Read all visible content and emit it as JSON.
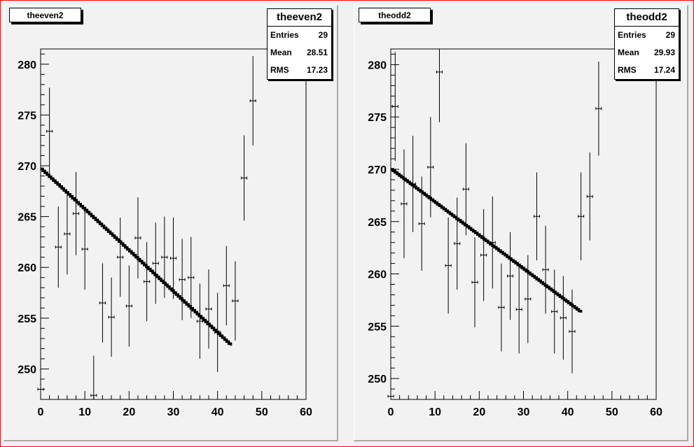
{
  "colors": {
    "frame_border": "#ff0000",
    "pad_background": "#f2f2f2",
    "marker": "#000000",
    "fit_line": "#000000"
  },
  "chart_data": [
    {
      "type": "scatter",
      "title": "theeven2",
      "stats": {
        "name": "theeven2",
        "rows": [
          {
            "label": "Entries",
            "value": "29"
          },
          {
            "label": "Mean",
            "value": "28.51"
          },
          {
            "label": "RMS",
            "value": "17.23"
          }
        ]
      },
      "xlim": [
        0,
        60
      ],
      "ylim": [
        247,
        281.5
      ],
      "xticks": [
        0,
        10,
        20,
        30,
        40,
        50,
        60
      ],
      "yticks": [
        250,
        255,
        260,
        265,
        270,
        275,
        280
      ],
      "points": [
        {
          "x": 0,
          "y": 248,
          "err": 1.2
        },
        {
          "x": 2,
          "y": 273.4,
          "err": 4.3
        },
        {
          "x": 4,
          "y": 262,
          "err": 4
        },
        {
          "x": 6,
          "y": 263.3,
          "err": 4
        },
        {
          "x": 8,
          "y": 265.3,
          "err": 4.1
        },
        {
          "x": 10,
          "y": 261.8,
          "err": 4
        },
        {
          "x": 12,
          "y": 247.4,
          "err": 3.9
        },
        {
          "x": 14,
          "y": 256.5,
          "err": 3.9
        },
        {
          "x": 16,
          "y": 255.1,
          "err": 3.9
        },
        {
          "x": 18,
          "y": 261,
          "err": 3.9
        },
        {
          "x": 20,
          "y": 256.2,
          "err": 4
        },
        {
          "x": 22,
          "y": 262.9,
          "err": 4
        },
        {
          "x": 24,
          "y": 258.6,
          "err": 3.9
        },
        {
          "x": 26,
          "y": 260.4,
          "err": 4
        },
        {
          "x": 28,
          "y": 261,
          "err": 4
        },
        {
          "x": 30,
          "y": 260.9,
          "err": 4
        },
        {
          "x": 32,
          "y": 258.8,
          "err": 4
        },
        {
          "x": 34,
          "y": 259,
          "err": 4
        },
        {
          "x": 36,
          "y": 254.7,
          "err": 3.7
        },
        {
          "x": 38,
          "y": 255.9,
          "err": 3.9
        },
        {
          "x": 40,
          "y": 253.6,
          "err": 3.9
        },
        {
          "x": 42,
          "y": 258.2,
          "err": 3.9
        },
        {
          "x": 44,
          "y": 256.7,
          "err": 3.9
        },
        {
          "x": 46,
          "y": 268.8,
          "err": 4.2
        },
        {
          "x": 48,
          "y": 276.4,
          "err": 4.4
        }
      ],
      "fit": {
        "x": [
          0,
          43
        ],
        "y": [
          269.7,
          252.3
        ]
      }
    },
    {
      "type": "scatter",
      "title": "theodd2",
      "stats": {
        "name": "theodd2",
        "rows": [
          {
            "label": "Entries",
            "value": "29"
          },
          {
            "label": "Mean",
            "value": "29.93"
          },
          {
            "label": "RMS",
            "value": "17.24"
          }
        ]
      },
      "xlim": [
        0,
        60
      ],
      "ylim": [
        248,
        281.5
      ],
      "xticks": [
        0,
        10,
        20,
        30,
        40,
        50,
        60
      ],
      "yticks": [
        250,
        255,
        260,
        265,
        270,
        275,
        280
      ],
      "points": [
        {
          "x": 0,
          "y": 248.3,
          "err": 0.8
        },
        {
          "x": 1,
          "y": 276,
          "err": 5.2
        },
        {
          "x": 3,
          "y": 266.7,
          "err": 5.2
        },
        {
          "x": 5,
          "y": 268.6,
          "err": 4.6
        },
        {
          "x": 7,
          "y": 264.8,
          "err": 4.5
        },
        {
          "x": 9,
          "y": 270.2,
          "err": 4.8
        },
        {
          "x": 11,
          "y": 279.3,
          "err": 4.8
        },
        {
          "x": 13,
          "y": 260.8,
          "err": 4.6
        },
        {
          "x": 15,
          "y": 262.9,
          "err": 4.4
        },
        {
          "x": 17,
          "y": 268.1,
          "err": 4.4
        },
        {
          "x": 19,
          "y": 259.2,
          "err": 4.3
        },
        {
          "x": 21,
          "y": 261.8,
          "err": 4.4
        },
        {
          "x": 23,
          "y": 263,
          "err": 4.4
        },
        {
          "x": 25,
          "y": 256.8,
          "err": 4.2
        },
        {
          "x": 27,
          "y": 259.8,
          "err": 4.2
        },
        {
          "x": 29,
          "y": 256.6,
          "err": 4.2
        },
        {
          "x": 31,
          "y": 257.6,
          "err": 4.2
        },
        {
          "x": 33,
          "y": 265.5,
          "err": 4.2
        },
        {
          "x": 35,
          "y": 260.4,
          "err": 4.2
        },
        {
          "x": 37,
          "y": 256.4,
          "err": 4
        },
        {
          "x": 39,
          "y": 255.8,
          "err": 4
        },
        {
          "x": 41,
          "y": 254.5,
          "err": 4
        },
        {
          "x": 43,
          "y": 265.5,
          "err": 4.2
        },
        {
          "x": 45,
          "y": 267.4,
          "err": 4.2
        },
        {
          "x": 47,
          "y": 275.8,
          "err": 4.5
        }
      ],
      "fit": {
        "x": [
          0,
          43
        ],
        "y": [
          270,
          256.3
        ]
      }
    }
  ]
}
